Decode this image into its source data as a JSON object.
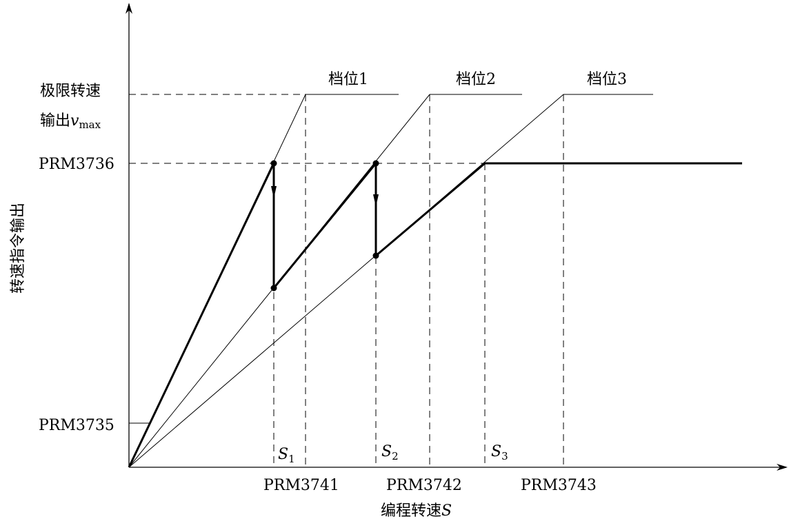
{
  "diagram": {
    "y_axis_title": "转速指令输出",
    "x_axis_title": {
      "text": "编程转速",
      "var": "S"
    },
    "vmax_label": {
      "line1": "极限转速",
      "line2": "输出",
      "var": "v",
      "sub": "max"
    },
    "y_labels": {
      "prm3736": "PRM3736",
      "prm3735": "PRM3735"
    },
    "x_labels": {
      "prm3741": "PRM3741",
      "prm3742": "PRM3742",
      "prm3743": "PRM3743"
    },
    "gears": [
      {
        "label": "档位1"
      },
      {
        "label": "档位2"
      },
      {
        "label": "档位3"
      }
    ],
    "switch_points": [
      {
        "var": "S",
        "sub": "1"
      },
      {
        "var": "S",
        "sub": "2"
      },
      {
        "var": "S",
        "sub": "3"
      }
    ],
    "colors": {
      "line": "#000000",
      "background": "#ffffff"
    }
  }
}
